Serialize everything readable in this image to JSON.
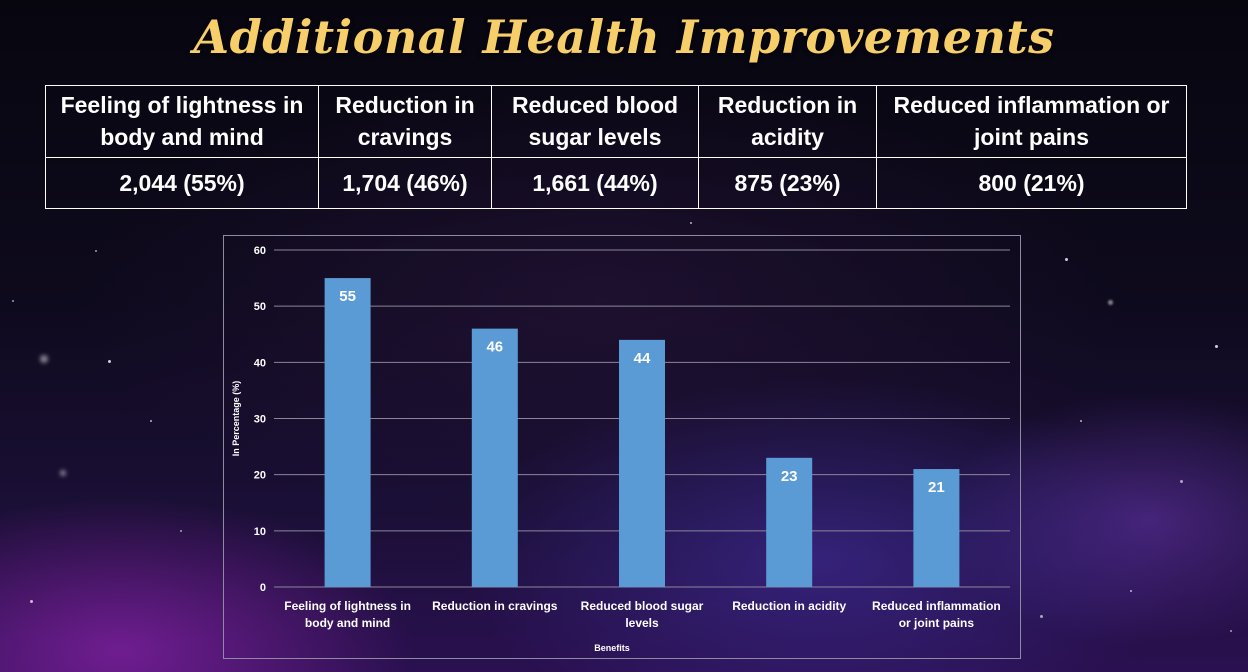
{
  "title": "Additional Health Improvements",
  "table": {
    "headers": [
      "Feeling of lightness in body and mind",
      "Reduction in cravings",
      "Reduced blood sugar levels",
      "Reduction in acidity",
      "Reduced inflammation or joint pains"
    ],
    "values": [
      "2,044 (55%)",
      "1,704 (46%)",
      "1,661 (44%)",
      "875 (23%)",
      "800 (21%)"
    ]
  },
  "chart_data": {
    "type": "bar",
    "categories": [
      [
        "Feeling of lightness in",
        "body and mind"
      ],
      [
        "Reduction in cravings"
      ],
      [
        "Reduced blood sugar",
        "levels"
      ],
      [
        "Reduction in acidity"
      ],
      [
        "Reduced inflammation",
        "or joint pains"
      ]
    ],
    "values": [
      55,
      46,
      44,
      23,
      21
    ],
    "title": "",
    "xlabel": "Benefits",
    "ylabel": "In Percentage (%)",
    "ylim": [
      0,
      60
    ],
    "yticks": [
      0,
      10,
      20,
      30,
      40,
      50,
      60
    ],
    "grid": true,
    "bar_color": "#5b9bd5",
    "label_color": "#ffffff"
  }
}
